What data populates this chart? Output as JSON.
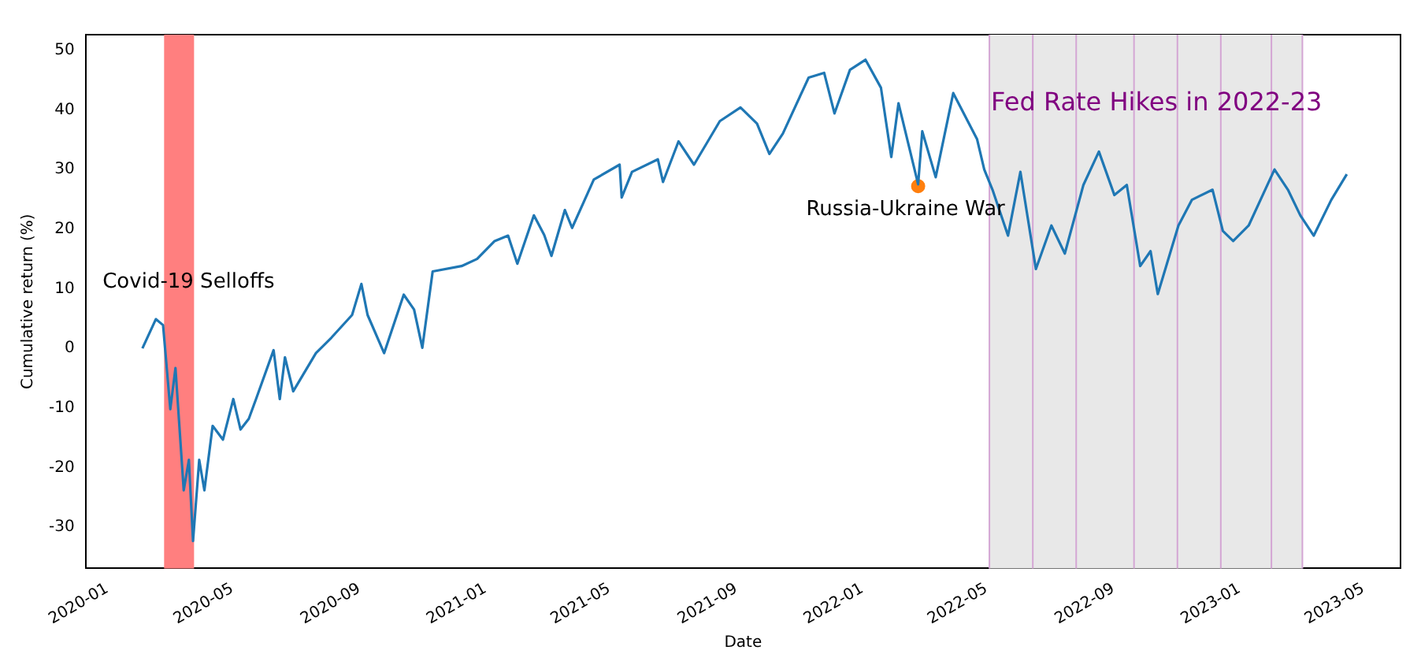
{
  "chart_data": {
    "type": "line",
    "xlabel": "Date",
    "ylabel": "Cumulative return (%)",
    "xlim": [
      "2019-12-11",
      "2023-06-06"
    ],
    "ylim": [
      -36.9,
      52.6
    ],
    "xticks": [
      "2020-01",
      "2020-05",
      "2020-09",
      "2021-01",
      "2021-05",
      "2021-09",
      "2022-01",
      "2022-05",
      "2022-09",
      "2023-01",
      "2023-05"
    ],
    "yticks": [
      -30,
      -20,
      -10,
      0,
      10,
      20,
      30,
      40,
      50
    ],
    "grid": false,
    "legend": false,
    "marker": "none",
    "line_style": "solid",
    "series": [
      {
        "color": "#1f77b4",
        "x": [
          "2020-02-04",
          "2020-02-17",
          "2020-02-24",
          "2020-03-02",
          "2020-03-07",
          "2020-03-15",
          "2020-03-20",
          "2020-03-24",
          "2020-03-30",
          "2020-04-04",
          "2020-04-12",
          "2020-04-22",
          "2020-05-02",
          "2020-05-09",
          "2020-05-17",
          "2020-05-24",
          "2020-06-10",
          "2020-06-16",
          "2020-06-21",
          "2020-06-29",
          "2020-07-21",
          "2020-08-05",
          "2020-08-25",
          "2020-09-03",
          "2020-09-09",
          "2020-09-25",
          "2020-10-14",
          "2020-10-24",
          "2020-11-01",
          "2020-11-11",
          "2020-12-09",
          "2020-12-24",
          "2021-01-10",
          "2021-01-23",
          "2021-02-01",
          "2021-02-17",
          "2021-02-27",
          "2021-03-06",
          "2021-03-19",
          "2021-03-26",
          "2021-04-16",
          "2021-05-11",
          "2021-05-13",
          "2021-05-23",
          "2021-06-17",
          "2021-06-22",
          "2021-07-07",
          "2021-07-22",
          "2021-08-16",
          "2021-09-05",
          "2021-09-21",
          "2021-10-03",
          "2021-10-16",
          "2021-11-10",
          "2021-11-25",
          "2021-12-05",
          "2021-12-20",
          "2022-01-04",
          "2022-01-19",
          "2022-01-29",
          "2022-02-05",
          "2022-02-24",
          "2022-02-28",
          "2022-03-13",
          "2022-03-30",
          "2022-04-22",
          "2022-04-29",
          "2022-05-07",
          "2022-05-22",
          "2022-06-03",
          "2022-06-18",
          "2022-07-03",
          "2022-07-16",
          "2022-08-03",
          "2022-08-18",
          "2022-09-02",
          "2022-09-14",
          "2022-09-27",
          "2022-10-07",
          "2022-10-14",
          "2022-11-03",
          "2022-11-16",
          "2022-12-06",
          "2022-12-16",
          "2022-12-26",
          "2023-01-10",
          "2023-02-04",
          "2023-02-17",
          "2023-03-01",
          "2023-03-14",
          "2023-03-31",
          "2023-04-15"
        ],
        "values": [
          0,
          4.9,
          3.9,
          -10.2,
          -3.3,
          -23.8,
          -18.7,
          -32.3,
          -18.7,
          -23.8,
          -13,
          -15.3,
          -8.5,
          -13.6,
          -11.8,
          -8.5,
          -0.3,
          -8.5,
          -1.5,
          -7.2,
          -0.8,
          1.8,
          5.6,
          10.8,
          5.6,
          -0.8,
          9,
          6.5,
          0.1,
          12.9,
          13.8,
          15,
          18,
          18.9,
          14.2,
          22.3,
          19,
          15.5,
          23.2,
          20.2,
          28.3,
          30.8,
          25.3,
          29.6,
          31.7,
          27.9,
          34.7,
          30.8,
          38.1,
          40.4,
          37.7,
          32.6,
          36,
          45.4,
          46.2,
          39.4,
          46.7,
          48.4,
          43.7,
          32.1,
          41.1,
          27.5,
          36.4,
          28.7,
          42.8,
          35.1,
          30,
          26.6,
          18.9,
          29.6,
          13.3,
          20.6,
          15.9,
          27.4,
          33,
          25.7,
          27.4,
          13.8,
          16.3,
          9.1,
          20.6,
          24.9,
          26.6,
          19.7,
          18,
          20.6,
          30,
          26.6,
          22.3,
          18.9,
          24.9,
          29.2
        ]
      },
      {
        "type": "scatter",
        "name": "Russia-Ukraine War",
        "color": "#ff7f0e",
        "marker": "circle",
        "x": [
          "2022-02-24"
        ],
        "values": [
          27.2
        ]
      }
    ],
    "bands": [
      {
        "axis": "x",
        "from": "2020-02-25",
        "to": "2020-03-25",
        "color": "#ff7f7f",
        "label": "Covid-19 Selloffs"
      },
      {
        "axis": "x",
        "from": "2022-05-04",
        "to": "2023-03-03",
        "color": "#e8e8e8",
        "label": "Fed Rate Hikes in 2022-23"
      }
    ],
    "ref_lines": [
      {
        "axis": "x",
        "value": "2022-05-04",
        "color": "#d4a6d4"
      },
      {
        "axis": "x",
        "value": "2022-06-15",
        "color": "#d4a6d4"
      },
      {
        "axis": "x",
        "value": "2022-07-27",
        "color": "#d4a6d4"
      },
      {
        "axis": "x",
        "value": "2022-09-21",
        "color": "#d4a6d4"
      },
      {
        "axis": "x",
        "value": "2022-11-02",
        "color": "#d4a6d4"
      },
      {
        "axis": "x",
        "value": "2022-12-14",
        "color": "#d4a6d4"
      },
      {
        "axis": "x",
        "value": "2023-02-01",
        "color": "#d4a6d4"
      },
      {
        "axis": "x",
        "value": "2023-03-03",
        "color": "#d4a6d4"
      }
    ]
  }
}
